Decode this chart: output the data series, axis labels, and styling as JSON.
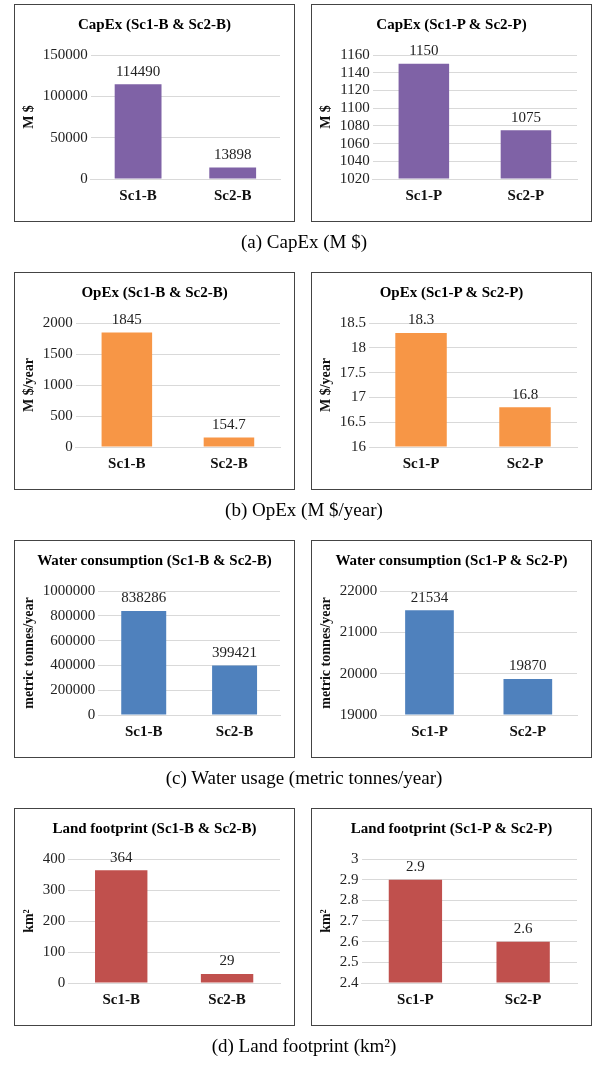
{
  "chart_data": [
    {
      "type": "bar",
      "title": "CapEx (Sc1-B & Sc2-B)",
      "ylabel": "M $",
      "categories": [
        "Sc1-B",
        "Sc2-B"
      ],
      "values": [
        114490,
        13898
      ],
      "color": "#7f62a6",
      "ylim": [
        0,
        150000
      ],
      "yticks": [
        0,
        50000,
        100000,
        150000
      ],
      "grid": "y",
      "data_labels": true,
      "annotations": [
        "(a) CapEx (M $)"
      ]
    },
    {
      "type": "bar",
      "title": "CapEx (Sc1-P & Sc2-P)",
      "ylabel": "M $",
      "categories": [
        "Sc1-P",
        "Sc2-P"
      ],
      "values": [
        1150,
        1075
      ],
      "color": "#7f62a6",
      "ylim": [
        1020,
        1160
      ],
      "yticks": [
        1020,
        1040,
        1060,
        1080,
        1100,
        1120,
        1140,
        1160
      ],
      "grid": "y",
      "data_labels": true
    },
    {
      "type": "bar",
      "title": "OpEx (Sc1-B & Sc2-B)",
      "ylabel": "M $/year",
      "categories": [
        "Sc1-B",
        "Sc2-B"
      ],
      "values": [
        1845,
        154.7
      ],
      "color": "#f79646",
      "ylim": [
        0,
        2000
      ],
      "yticks": [
        0,
        500,
        1000,
        1500,
        2000
      ],
      "grid": "y",
      "data_labels": true,
      "annotations": [
        "(b) OpEx (M $/year)"
      ]
    },
    {
      "type": "bar",
      "title": "OpEx (Sc1-P & Sc2-P)",
      "ylabel": "M $/year",
      "categories": [
        "Sc1-P",
        "Sc2-P"
      ],
      "values": [
        18.3,
        16.8
      ],
      "color": "#f79646",
      "ylim": [
        16,
        18.5
      ],
      "yticks": [
        16,
        16.5,
        17,
        17.5,
        18,
        18.5
      ],
      "grid": "y",
      "data_labels": true
    },
    {
      "type": "bar",
      "title": "Water consumption (Sc1-B & Sc2-B)",
      "ylabel": "metric tonnes/year",
      "categories": [
        "Sc1-B",
        "Sc2-B"
      ],
      "values": [
        838286,
        399421
      ],
      "color": "#4f81bd",
      "ylim": [
        0,
        1000000
      ],
      "yticks": [
        0,
        200000,
        400000,
        600000,
        800000,
        1000000
      ],
      "grid": "y",
      "data_labels": true,
      "annotations": [
        "(c) Water usage (metric tonnes/year)"
      ]
    },
    {
      "type": "bar",
      "title": "Water consumption (Sc1-P & Sc2-P)",
      "ylabel": "metric tonnes/year",
      "categories": [
        "Sc1-P",
        "Sc2-P"
      ],
      "values": [
        21534,
        19870
      ],
      "color": "#4f81bd",
      "ylim": [
        19000,
        22000
      ],
      "yticks": [
        19000,
        20000,
        21000,
        22000
      ],
      "grid": "y",
      "data_labels": true
    },
    {
      "type": "bar",
      "title": "Land footprint (Sc1-B & Sc2-B)",
      "ylabel": "km²",
      "categories": [
        "Sc1-B",
        "Sc2-B"
      ],
      "values": [
        364,
        29
      ],
      "color": "#c0504d",
      "ylim": [
        0,
        400
      ],
      "yticks": [
        0,
        100,
        200,
        300,
        400
      ],
      "grid": "y",
      "data_labels": true,
      "annotations": [
        "(d) Land footprint (km²)"
      ]
    },
    {
      "type": "bar",
      "title": "Land footprint (Sc1-P & Sc2-P)",
      "ylabel": "km²",
      "categories": [
        "Sc1-P",
        "Sc2-P"
      ],
      "values": [
        2.9,
        2.6
      ],
      "color": "#c0504d",
      "ylim": [
        2.4,
        3
      ],
      "yticks": [
        2.4,
        2.5,
        2.6,
        2.7,
        2.8,
        2.9,
        3
      ],
      "grid": "y",
      "data_labels": true
    }
  ]
}
